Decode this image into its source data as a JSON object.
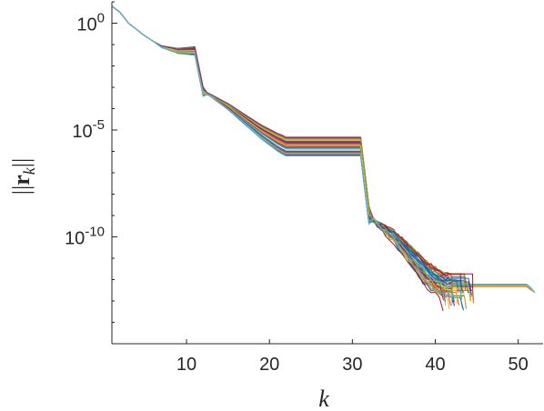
{
  "chart_data": {
    "type": "line",
    "xlabel": "k",
    "ylabel": "||r_k||",
    "xlim": [
      1,
      53
    ],
    "ylim_log10": [
      -15,
      1
    ],
    "yscale": "log",
    "grid": false,
    "legend": "none",
    "x_ticks": [
      {
        "value": 10,
        "label": "10"
      },
      {
        "value": 20,
        "label": "20"
      },
      {
        "value": 30,
        "label": "30"
      },
      {
        "value": 40,
        "label": "40"
      },
      {
        "value": 50,
        "label": "50"
      }
    ],
    "y_ticks": [
      {
        "value": 0,
        "base": "10",
        "exp": "0"
      },
      {
        "value": -5,
        "base": "10",
        "exp": "-5"
      },
      {
        "value": -10,
        "base": "10",
        "exp": "-10"
      }
    ],
    "series_count": 48,
    "series_note": "all series follow the same staircase trend with small spread",
    "representative_log10_residual": {
      "k": [
        1,
        2,
        3,
        5,
        7,
        9,
        11,
        12,
        13,
        15,
        17,
        19,
        21,
        22,
        25,
        28,
        31,
        32,
        33,
        35,
        37,
        39,
        41,
        42,
        45,
        48,
        51,
        52,
        52.3
      ],
      "log10": [
        0.8,
        0.5,
        0.0,
        -0.6,
        -1.1,
        -1.3,
        -1.3,
        -3.2,
        -3.4,
        -3.9,
        -4.5,
        -5.1,
        -5.6,
        -5.8,
        -5.8,
        -5.8,
        -5.8,
        -9.0,
        -9.4,
        -10.0,
        -10.9,
        -11.8,
        -12.3,
        -12.3,
        -12.3,
        -12.3,
        -12.3,
        -12.6,
        -15.0
      ]
    },
    "colors": [
      "#0072BD",
      "#D95319",
      "#EDB120",
      "#7E2F8E",
      "#77AC30",
      "#4DBEEE",
      "#A2142F"
    ]
  }
}
